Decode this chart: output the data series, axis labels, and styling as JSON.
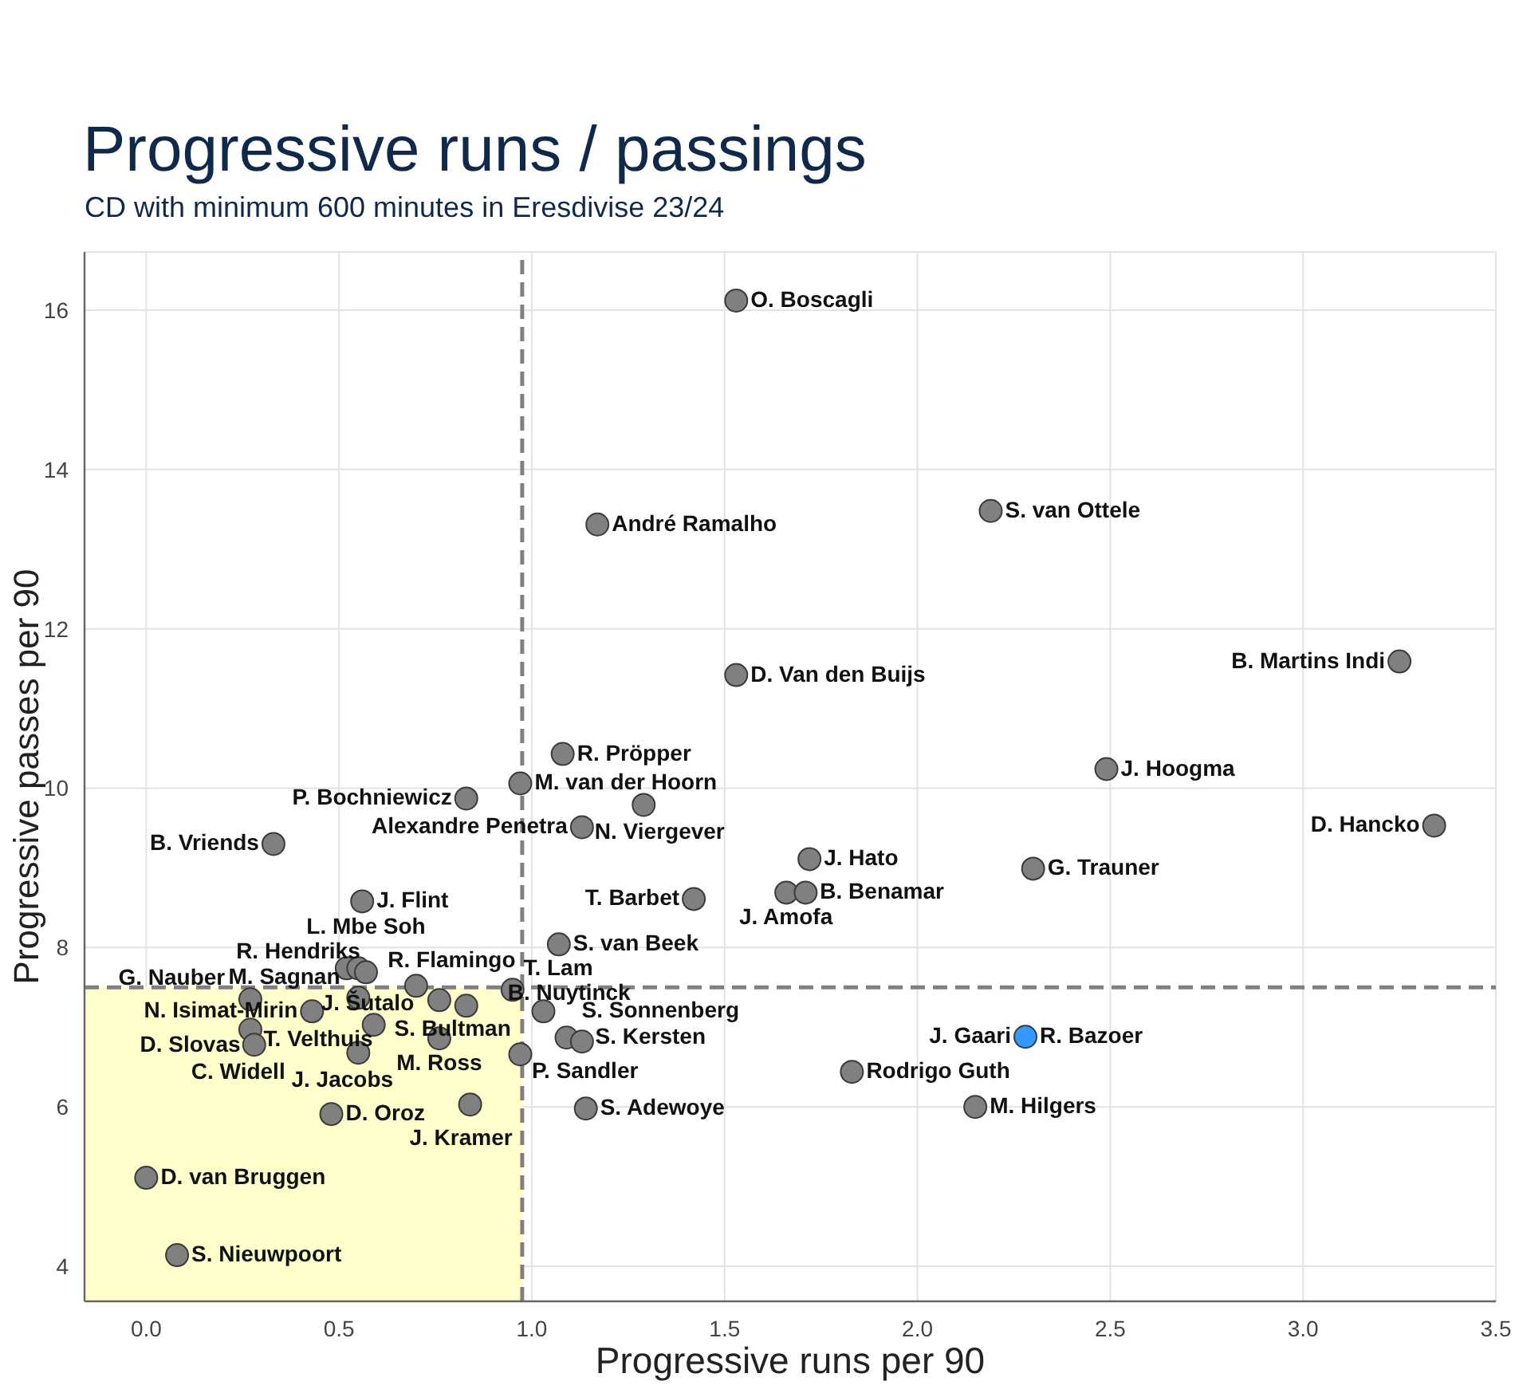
{
  "chart_data": {
    "type": "scatter",
    "title": "Progressive runs / passings",
    "subtitle": "CD with minimum 600 minutes in Eresdivise 23/24",
    "xlabel": "Progressive runs per 90",
    "ylabel": "Progressive passes per 90",
    "xlim": [
      -0.16,
      3.5
    ],
    "ylim": [
      3.56,
      16.73
    ],
    "xticks": [
      {
        "value": 0,
        "label": "0.0"
      },
      0.5,
      {
        "value": 1,
        "label": "1.0"
      },
      1.5,
      {
        "value": 2,
        "label": "2.0"
      },
      2.5,
      {
        "value": 3,
        "label": "3.0"
      },
      3.5
    ],
    "yticks": [
      4,
      6,
      8,
      10,
      12,
      14,
      16
    ],
    "grid": true,
    "marker": "circle",
    "series": [
      {
        "x": [
          1.53,
          1.17,
          2.19,
          1.53,
          3.25,
          1.08,
          2.49,
          3.34,
          0.97,
          1.29,
          0.83,
          1.13,
          0.33,
          1.72,
          2.3,
          1.42,
          1.66,
          1.71,
          0.56,
          1.07,
          0.52,
          0.55,
          0.57,
          0.7,
          0.95,
          0.27,
          0.55,
          0.76,
          0.83,
          0.43,
          1.03,
          0.27,
          0.28,
          0.59,
          0.76,
          1.09,
          1.13,
          0.55,
          0.97,
          0.48,
          0.84,
          1.14,
          0.0,
          0.08,
          1.83,
          2.28,
          2.15
        ],
        "values": [
          16.12,
          13.31,
          13.48,
          11.42,
          11.59,
          10.43,
          10.24,
          9.53,
          10.06,
          9.79,
          9.87,
          9.51,
          9.3,
          9.11,
          8.99,
          8.61,
          8.69,
          8.69,
          8.58,
          8.04,
          7.74,
          7.74,
          7.69,
          7.52,
          7.47,
          7.35,
          7.37,
          7.34,
          7.27,
          7.2,
          7.2,
          6.97,
          6.78,
          7.03,
          6.86,
          6.87,
          6.82,
          6.68,
          6.66,
          5.91,
          6.03,
          5.98,
          5.11,
          4.14,
          6.44,
          6.88,
          6.0
        ],
        "colors": [
          "#808080",
          "#808080",
          "#808080",
          "#808080",
          "#808080",
          "#808080",
          "#808080",
          "#808080",
          "#808080",
          "#808080",
          "#808080",
          "#808080",
          "#808080",
          "#808080",
          "#808080",
          "#808080",
          "#808080",
          "#808080",
          "#808080",
          "#808080",
          "#808080",
          "#808080",
          "#808080",
          "#808080",
          "#808080",
          "#808080",
          "#808080",
          "#808080",
          "#808080",
          "#808080",
          "#808080",
          "#808080",
          "#808080",
          "#808080",
          "#808080",
          "#808080",
          "#808080",
          "#808080",
          "#808080",
          "#808080",
          "#808080",
          "#808080",
          "#808080",
          "#808080",
          "#808080",
          "#3399ff",
          "#808080"
        ]
      }
    ],
    "ref_lines": [
      {
        "axis": "x",
        "value": 0.975,
        "color": "#808080",
        "line_style": "dashed"
      },
      {
        "axis": "y",
        "value": 7.5,
        "color": "#808080",
        "line_style": "dashed"
      }
    ],
    "bands": [
      {
        "axis": "x",
        "from": -0.16,
        "to": 0.975,
        "color": "#ffffcc"
      }
    ],
    "annotations": [
      {
        "text": "O. Boscagli",
        "x": 1.53,
        "y": 16.12
      },
      {
        "text": "André Ramalho",
        "x": 1.17,
        "y": 13.31
      },
      {
        "text": "S. van Ottele",
        "x": 2.19,
        "y": 13.48
      },
      {
        "text": "D. Van den Buijs",
        "x": 1.53,
        "y": 11.42
      },
      {
        "text": "B. Martins Indi",
        "x": 3.25,
        "y": 11.59
      },
      {
        "text": "R. Pröpper",
        "x": 1.08,
        "y": 10.43
      },
      {
        "text": "J. Hoogma",
        "x": 2.49,
        "y": 10.24
      },
      {
        "text": "D. Hancko",
        "x": 3.34,
        "y": 9.53
      },
      {
        "text": "M. van der Hoorn",
        "x": 0.97,
        "y": 10.06
      },
      {
        "text": "N. Viergever",
        "x": 1.29,
        "y": 9.79
      },
      {
        "text": "P. Bochniewicz",
        "x": 0.83,
        "y": 9.87
      },
      {
        "text": "Alexandre Penetra",
        "x": 1.13,
        "y": 9.51
      },
      {
        "text": "B. Vriends",
        "x": 0.33,
        "y": 9.3
      },
      {
        "text": "J. Hato",
        "x": 1.72,
        "y": 9.11
      },
      {
        "text": "G. Trauner",
        "x": 2.3,
        "y": 8.99
      },
      {
        "text": "T. Barbet",
        "x": 1.42,
        "y": 8.61
      },
      {
        "text": "J. Amofa",
        "x": 1.66,
        "y": 8.69
      },
      {
        "text": "B. Benamar",
        "x": 1.71,
        "y": 8.69
      },
      {
        "text": "J. Flint",
        "x": 0.56,
        "y": 8.58
      },
      {
        "text": "S. van Beek",
        "x": 1.07,
        "y": 8.04
      },
      {
        "text": "J. Šutalo",
        "x": 0.52,
        "y": 7.74
      },
      {
        "text": "R. Hendriks",
        "x": 0.55,
        "y": 7.74
      },
      {
        "text": "L. Mbe Soh",
        "x": 0.57,
        "y": 7.69
      },
      {
        "text": "R. Flamingo",
        "x": 0.7,
        "y": 7.52
      },
      {
        "text": "T. Lam",
        "x": 0.95,
        "y": 7.47
      },
      {
        "text": "G. Nauber",
        "x": 0.27,
        "y": 7.35
      },
      {
        "text": "M. Sagnan",
        "x": 0.55,
        "y": 7.37
      },
      {
        "text": "S. Bultman",
        "x": 0.83,
        "y": 7.27
      },
      {
        "text": "N. Isimat-Mirin",
        "x": 0.43,
        "y": 7.2
      },
      {
        "text": "S. Sonnenberg",
        "x": 1.03,
        "y": 7.2
      },
      {
        "text": "D. Slovas",
        "x": 0.27,
        "y": 6.97
      },
      {
        "text": "C. Widell",
        "x": 0.28,
        "y": 6.78
      },
      {
        "text": "T. Velthuis",
        "x": 0.59,
        "y": 7.03
      },
      {
        "text": "M. Ross",
        "x": 0.76,
        "y": 6.86
      },
      {
        "text": "S. Kersten",
        "x": 1.09,
        "y": 6.87
      },
      {
        "text": "B. Nuytinck",
        "x": 1.13,
        "y": 6.82
      },
      {
        "text": "J. Jacobs",
        "x": 0.55,
        "y": 6.68
      },
      {
        "text": "P. Sandler",
        "x": 0.97,
        "y": 6.66
      },
      {
        "text": "D. Oroz",
        "x": 0.48,
        "y": 5.91
      },
      {
        "text": "J. Kramer",
        "x": 0.84,
        "y": 6.03
      },
      {
        "text": "S. Adewoye",
        "x": 1.14,
        "y": 5.98
      },
      {
        "text": "D. van Bruggen",
        "x": 0.0,
        "y": 5.11
      },
      {
        "text": "S. Nieuwpoort",
        "x": 0.08,
        "y": 4.14
      },
      {
        "text": "Rodrigo Guth",
        "x": 1.83,
        "y": 6.44
      },
      {
        "text": "R. Bazoer",
        "x": 2.28,
        "y": 6.88
      },
      {
        "text": "J. Gaari",
        "x": 2.28,
        "y": 6.88
      },
      {
        "text": "M. Hilgers",
        "x": 2.15,
        "y": 6.0
      }
    ]
  }
}
